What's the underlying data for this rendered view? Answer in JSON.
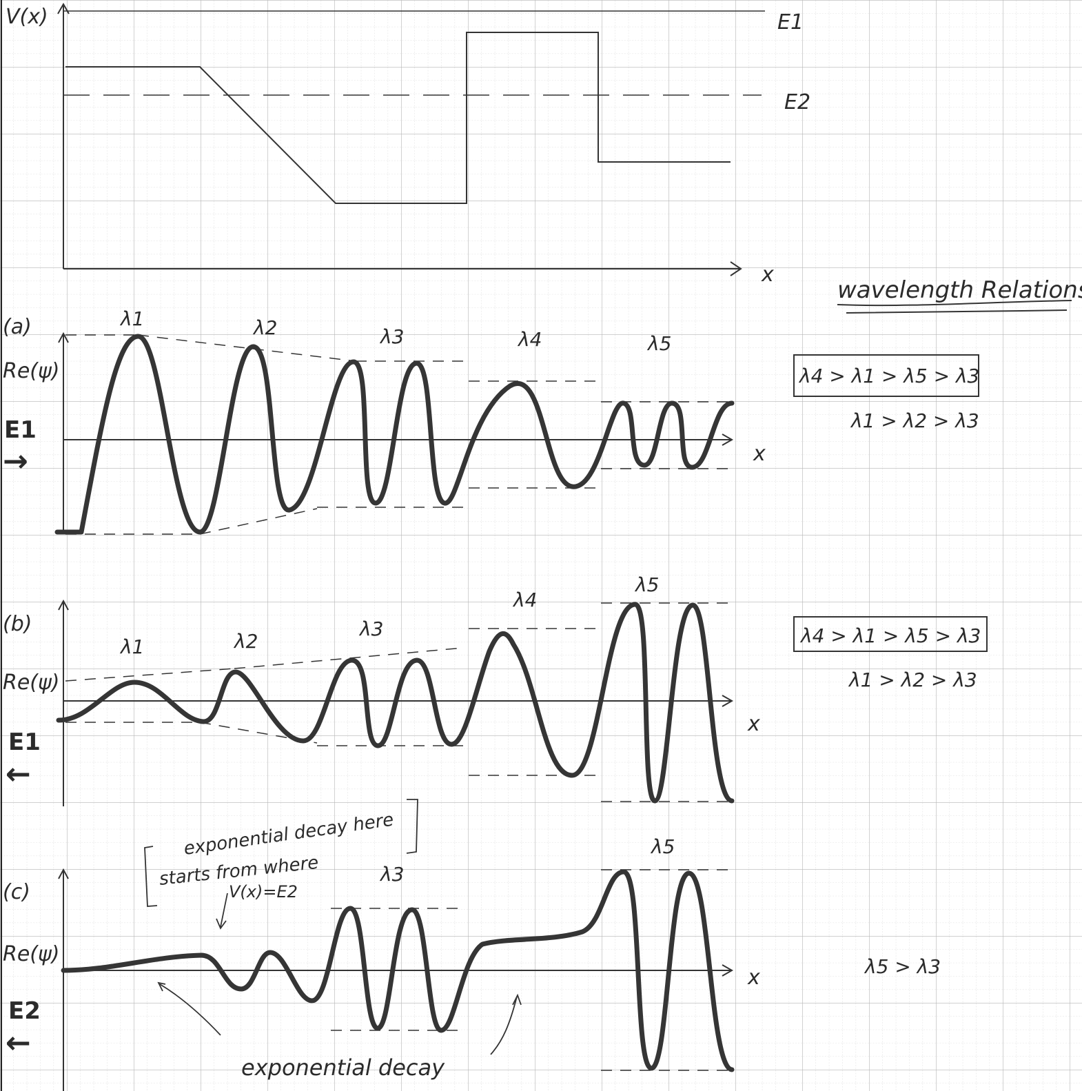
{
  "potential_plot": {
    "y_label": "V(x)",
    "x_label": "x",
    "energy_labels": [
      "E1",
      "E2"
    ]
  },
  "panels": [
    {
      "id": "a",
      "tag": "(a)",
      "y_label": "Re(ψ)",
      "energy": "E1",
      "direction": "→",
      "x_label": "x",
      "wavelength_labels": [
        "λ1",
        "λ2",
        "λ3",
        "λ4",
        "λ5"
      ],
      "relations": [
        "λ4 > λ1 > λ5 > λ3",
        "λ1 > λ2 > λ3"
      ]
    },
    {
      "id": "b",
      "tag": "(b)",
      "y_label": "Re(ψ)",
      "energy": "E1",
      "direction": "←",
      "x_label": "x",
      "wavelength_labels": [
        "λ1",
        "λ2",
        "λ3",
        "λ4",
        "λ5"
      ],
      "relations": [
        "λ4 > λ1 > λ5 > λ3",
        "λ1 > λ2 > λ3"
      ]
    },
    {
      "id": "c",
      "tag": "(c)",
      "y_label": "Re(ψ)",
      "energy": "E2",
      "direction": "←",
      "x_label": "x",
      "wavelength_labels": [
        "λ3",
        "λ5"
      ],
      "relations": [
        "λ5 > λ3"
      ]
    }
  ],
  "wavelength_heading": "wavelength Relations",
  "notes": {
    "decay_note_line1": "exponential decay here",
    "decay_note_line2": "starts from where",
    "decay_note_line3": "V(x)=E2",
    "bottom_label": "exponential decay"
  },
  "colors": {
    "ink": "#222222",
    "wave": "#3a3a3a",
    "grid_major": "#b9b9b9",
    "grid_minor": "#dcdcdc"
  }
}
